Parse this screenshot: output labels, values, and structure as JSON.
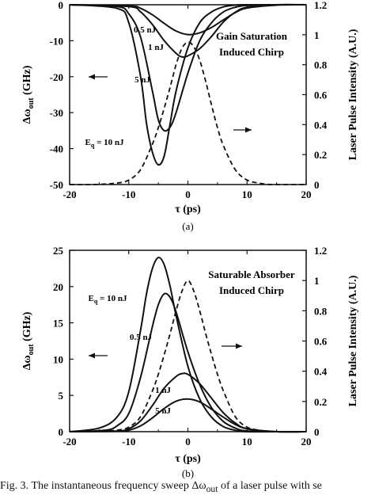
{
  "caption": "Fig. 3.  The instantaneous frequency sweep Δω",
  "caption_sub": "out",
  "caption_tail": " of a laser pulse with se",
  "chart_data": [
    {
      "type": "line",
      "panel_label": "(a)",
      "annotation": [
        "Gain Saturation",
        "Induced Chirp"
      ],
      "xlabel": "τ (ps)",
      "ylabel": "Δω",
      "ylabel_sub": "out",
      "ylabel_unit": " (GHz)",
      "y2label": "Laser Pulse Intensity (A.U.)",
      "xlim": [
        -20,
        20
      ],
      "ylim": [
        -50,
        0
      ],
      "y2lim": [
        0,
        1.2
      ],
      "xticks": [
        -20,
        -10,
        0,
        10,
        20
      ],
      "yticks": [
        0,
        -10,
        -20,
        -30,
        -40,
        -50
      ],
      "y2ticks": [
        0,
        0.2,
        0.4,
        0.6,
        0.8,
        1,
        1.2
      ],
      "y2tick_labels": [
        "0",
        "0.2",
        "0.4",
        "0.6",
        "0.8",
        "1",
        "1.2"
      ],
      "energy_label_prefix": "E",
      "energy_label_sub": "q",
      "energy_label_value": " = 10 nJ",
      "series": [
        {
          "label": "0.5 nJ",
          "x": [
            -20,
            -10,
            -8,
            -6,
            -4,
            -2,
            0,
            2,
            4,
            6,
            8,
            10,
            15,
            20
          ],
          "y": [
            0,
            -0.3,
            -1,
            -2.8,
            -5.2,
            -7.3,
            -8.3,
            -7.8,
            -6.3,
            -4.2,
            -2.2,
            -0.9,
            -0.1,
            0
          ]
        },
        {
          "label": "1 nJ",
          "x": [
            -20,
            -10,
            -8,
            -6,
            -4,
            -2,
            -1,
            0,
            2,
            4,
            6,
            8,
            10,
            15,
            20
          ],
          "y": [
            0,
            -0.5,
            -2,
            -5.5,
            -10,
            -13.5,
            -14.5,
            -14.2,
            -12.2,
            -8.8,
            -4.8,
            -2.1,
            -0.7,
            0,
            0
          ]
        },
        {
          "label": "5 nJ",
          "x": [
            -20,
            -12,
            -10,
            -8,
            -6,
            -5,
            -4,
            -3,
            -2,
            0,
            2,
            4,
            6,
            8,
            10,
            15,
            20
          ],
          "y": [
            0,
            -0.5,
            -2.5,
            -9,
            -24,
            -32,
            -35,
            -34,
            -30,
            -19,
            -10,
            -5,
            -2,
            -0.7,
            -0.2,
            0,
            0
          ]
        },
        {
          "label": "10 nJ",
          "x": [
            -20,
            -12,
            -10,
            -8,
            -7,
            -6,
            -5,
            -4,
            -3,
            -2,
            0,
            2,
            4,
            6,
            8,
            10,
            15,
            20
          ],
          "y": [
            0,
            -1,
            -5,
            -20,
            -33,
            -41,
            -44.5,
            -42,
            -33,
            -24,
            -12,
            -5,
            -2,
            -0.6,
            -0.1,
            0,
            0,
            0
          ]
        }
      ],
      "pulse": {
        "x": [
          -20,
          -16,
          -12,
          -10,
          -8,
          -6,
          -5,
          -4,
          -3,
          -2,
          -1,
          0,
          1,
          2,
          3,
          4,
          5,
          6,
          8,
          10,
          12,
          14,
          16,
          20
        ],
        "y": [
          0,
          0,
          0.01,
          0.03,
          0.1,
          0.27,
          0.38,
          0.51,
          0.65,
          0.8,
          0.91,
          0.95,
          0.92,
          0.83,
          0.69,
          0.53,
          0.38,
          0.26,
          0.1,
          0.03,
          0.01,
          0,
          0,
          0
        ]
      }
    },
    {
      "type": "line",
      "panel_label": "(b)",
      "annotation": [
        "Saturable Absorber",
        "Induced Chirp"
      ],
      "xlabel": "τ (ps)",
      "ylabel": "Δω",
      "ylabel_sub": "out",
      "ylabel_unit": " (GHz)",
      "y2label": "Laser Pulse Intensity (A.U.)",
      "xlim": [
        -20,
        20
      ],
      "ylim": [
        0,
        25
      ],
      "y2lim": [
        0,
        1.2
      ],
      "xticks": [
        -20,
        -10,
        0,
        10,
        20
      ],
      "yticks": [
        0,
        5,
        10,
        15,
        20,
        25
      ],
      "y2ticks": [
        0,
        0.2,
        0.4,
        0.6,
        0.8,
        1,
        1.2
      ],
      "y2tick_labels": [
        "0",
        "0.2",
        "0.4",
        "0.6",
        "0.8",
        "1",
        "1.2"
      ],
      "energy_label_prefix": "E",
      "energy_label_sub": "q",
      "energy_label_value": " = 10 nJ",
      "series": [
        {
          "label": "0.5 nJ",
          "x": [
            -20,
            -12,
            -10,
            -8,
            -6,
            -4,
            -2,
            0,
            2,
            4,
            6,
            8,
            10,
            15,
            20
          ],
          "y": [
            0,
            0.05,
            0.2,
            0.8,
            1.9,
            3.2,
            4.2,
            4.5,
            4.1,
            3.1,
            2,
            1,
            0.4,
            0,
            0
          ]
        },
        {
          "label": "1 nJ",
          "x": [
            -20,
            -12,
            -10,
            -8,
            -6,
            -4,
            -2,
            -1,
            0,
            2,
            4,
            6,
            8,
            10,
            15,
            20
          ],
          "y": [
            0,
            0.1,
            0.4,
            1.5,
            3.6,
            6,
            7.6,
            8,
            7.9,
            6.6,
            4.6,
            2.6,
            1.2,
            0.4,
            0,
            0
          ]
        },
        {
          "label": "5 nJ",
          "x": [
            -20,
            -14,
            -12,
            -10,
            -8,
            -6,
            -5,
            -4,
            -3,
            -2,
            0,
            2,
            4,
            6,
            8,
            10,
            15,
            20
          ],
          "y": [
            0,
            0.2,
            0.8,
            2.5,
            7.5,
            14.5,
            17.5,
            19,
            18.5,
            16.5,
            11,
            6.5,
            3.3,
            1.4,
            0.5,
            0.1,
            0,
            0
          ]
        },
        {
          "label": "10 nJ",
          "x": [
            -20,
            -15,
            -12,
            -10,
            -8,
            -7,
            -6,
            -5,
            -4,
            -3,
            -2,
            0,
            2,
            4,
            6,
            8,
            10,
            15,
            20
          ],
          "y": [
            0,
            0.5,
            2,
            5.5,
            14,
            19,
            22.5,
            24,
            23,
            20,
            16,
            9,
            4.5,
            2,
            0.7,
            0.2,
            0,
            0,
            0
          ]
        }
      ],
      "pulse": {
        "x": [
          -20,
          -16,
          -12,
          -10,
          -8,
          -6,
          -5,
          -4,
          -3,
          -2,
          -1,
          0,
          1,
          2,
          3,
          4,
          5,
          6,
          8,
          10,
          12,
          14,
          16,
          20
        ],
        "y": [
          0,
          0,
          0.01,
          0.03,
          0.1,
          0.27,
          0.38,
          0.51,
          0.65,
          0.8,
          0.93,
          1,
          0.93,
          0.8,
          0.65,
          0.51,
          0.38,
          0.27,
          0.1,
          0.03,
          0.01,
          0,
          0,
          0
        ]
      }
    }
  ]
}
